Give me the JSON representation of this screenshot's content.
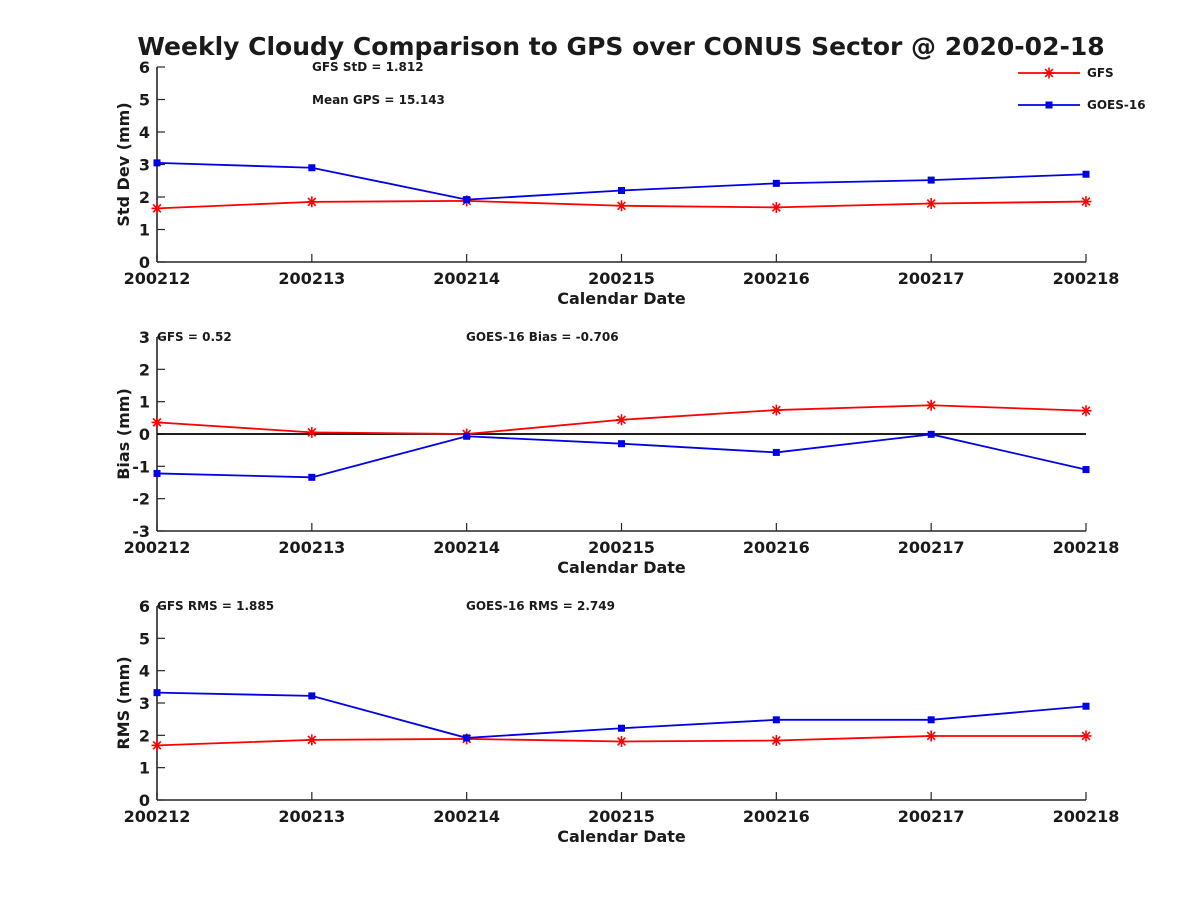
{
  "figure": {
    "title": "Weekly Cloudy Comparison to GPS over CONUS Sector @ 2020-02-18"
  },
  "colors": {
    "GFS": "#ff0000",
    "GOES-16": "#0000e6",
    "axis": "#262626",
    "zero_line": "#000000"
  },
  "legend": {
    "placement": "top-right",
    "entries": [
      {
        "name": "GFS",
        "marker": "asterisk",
        "color": "#ff0000"
      },
      {
        "name": "GOES-16",
        "marker": "square",
        "color": "#0000e6"
      }
    ]
  },
  "chart_data": [
    {
      "type": "line",
      "categories": [
        "200212",
        "200213",
        "200214",
        "200215",
        "200216",
        "200217",
        "200218"
      ],
      "xlabel": "Calendar Date",
      "ylabel": "Std Dev (mm)",
      "ylim": [
        0,
        6
      ],
      "yticks": [
        0,
        1,
        2,
        3,
        4,
        5,
        6
      ],
      "zero_line": false,
      "grid": false,
      "annotations": [
        "GFS StD = 1.812",
        "Mean GPS = 15.143"
      ],
      "series": [
        {
          "name": "GFS",
          "values": [
            1.65,
            1.85,
            1.88,
            1.73,
            1.68,
            1.8,
            1.86
          ]
        },
        {
          "name": "GOES-16",
          "values": [
            3.05,
            2.9,
            1.92,
            2.2,
            2.42,
            2.52,
            2.7
          ]
        }
      ]
    },
    {
      "type": "line",
      "categories": [
        "200212",
        "200213",
        "200214",
        "200215",
        "200216",
        "200217",
        "200218"
      ],
      "xlabel": "Calendar Date",
      "ylabel": "Bias (mm)",
      "ylim": [
        -3,
        3
      ],
      "yticks": [
        -3,
        -2,
        -1,
        0,
        1,
        2,
        3
      ],
      "zero_line": true,
      "grid": false,
      "annotations": [
        "GFS = 0.52",
        "GOES-16 Bias  = -0.706"
      ],
      "series": [
        {
          "name": "GFS",
          "values": [
            0.36,
            0.05,
            0.0,
            0.44,
            0.74,
            0.89,
            0.72
          ]
        },
        {
          "name": "GOES-16",
          "values": [
            -1.22,
            -1.34,
            -0.07,
            -0.3,
            -0.57,
            -0.01,
            -1.1
          ]
        }
      ]
    },
    {
      "type": "line",
      "categories": [
        "200212",
        "200213",
        "200214",
        "200215",
        "200216",
        "200217",
        "200218"
      ],
      "xlabel": "Calendar Date",
      "ylabel": "RMS (mm)",
      "ylim": [
        0,
        6
      ],
      "yticks": [
        0,
        1,
        2,
        3,
        4,
        5,
        6
      ],
      "zero_line": false,
      "grid": false,
      "annotations": [
        "GFS RMS = 1.885",
        "GOES-16 RMS = 2.749"
      ],
      "series": [
        {
          "name": "GFS",
          "values": [
            1.69,
            1.86,
            1.89,
            1.81,
            1.84,
            1.98,
            1.98
          ]
        },
        {
          "name": "GOES-16",
          "values": [
            3.32,
            3.22,
            1.92,
            2.22,
            2.48,
            2.48,
            2.9
          ]
        }
      ]
    }
  ]
}
